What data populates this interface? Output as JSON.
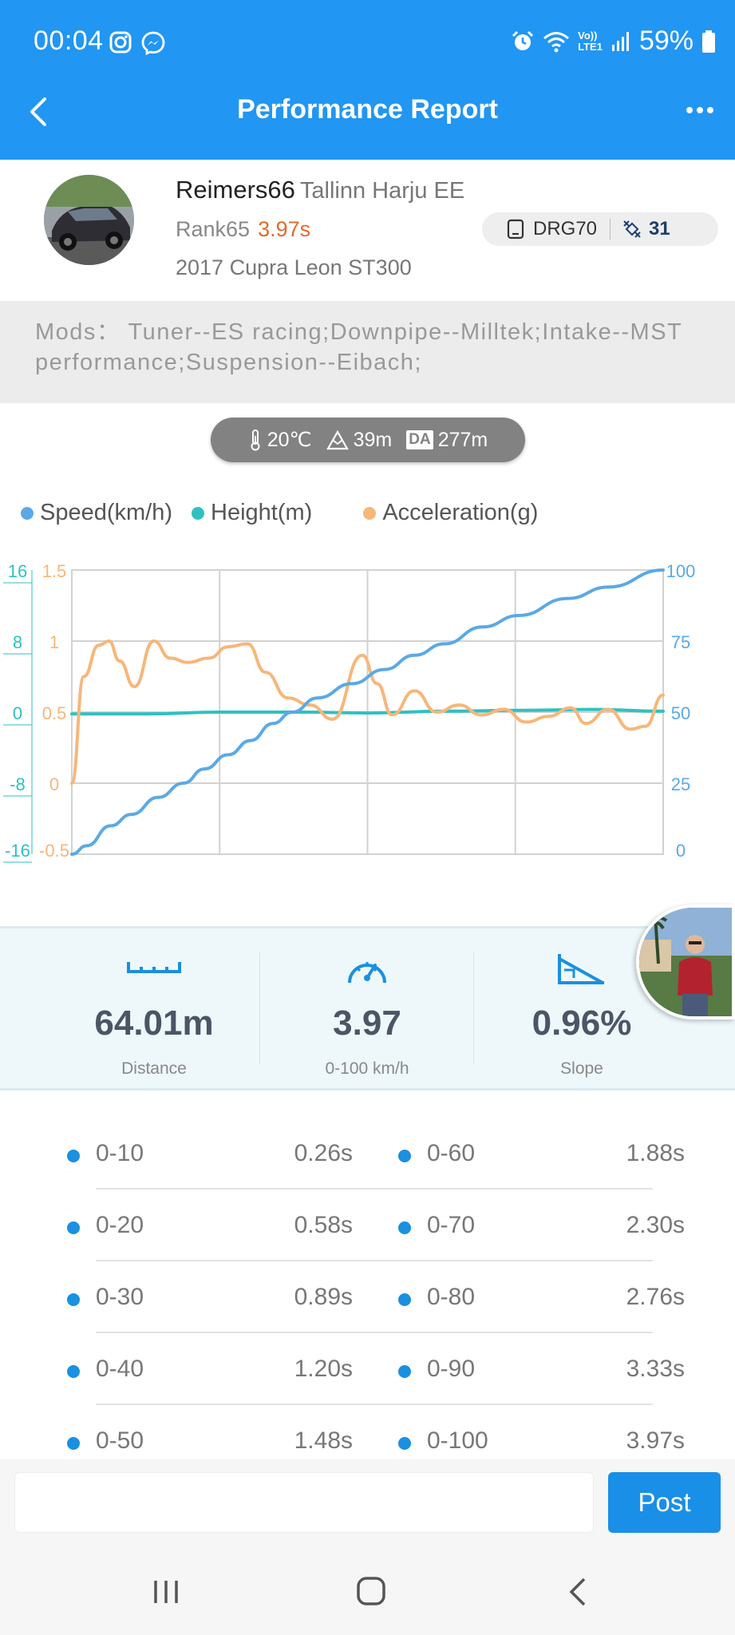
{
  "status_bar": {
    "time": "00:04",
    "left_icons": [
      "instagram-icon",
      "messenger-icon"
    ],
    "right_icons": [
      "alarm-icon",
      "wifi-icon",
      "volte-icon",
      "signal-icon"
    ],
    "network_label_top": "Vo))",
    "network_label_bottom": "LTE1",
    "battery_percent": "59%"
  },
  "header": {
    "title": "Performance Report"
  },
  "profile": {
    "username": "Reimers66",
    "location": "Tallinn Harju EE",
    "rank": "Rank65",
    "rank_time": "3.97s",
    "car": "2017 Cupra Leon ST300",
    "device": "DRG70",
    "satellites": "31"
  },
  "mods": {
    "text": "Mods： Tuner--ES racing;Downpipe--Milltek;Intake--MST performance;Suspension--Eibach;"
  },
  "conditions": {
    "temperature": "20℃",
    "altitude": "39m",
    "da_label": "DA",
    "density_altitude": "277m"
  },
  "legend": [
    {
      "label": "Speed(km/h)",
      "color": "#5aa9e6"
    },
    {
      "label": "Height(m)",
      "color": "#2fc1c0"
    },
    {
      "label": "Acceleration(g)",
      "color": "#f7b67a"
    }
  ],
  "chart_data": {
    "type": "line",
    "x_range": [
      0,
      3.97
    ],
    "grid": true,
    "axes": {
      "height_ticks": [
        "16",
        "8",
        "0",
        "-8",
        "-16"
      ],
      "accel_ticks": [
        "1.5",
        "1",
        "0.5",
        "0",
        "-0.5"
      ],
      "speed_ticks": [
        "100",
        "75",
        "50",
        "25",
        "0"
      ]
    },
    "series": [
      {
        "name": "Speed(km/h)",
        "color": "#5aa9e6",
        "x": [
          0,
          0.1,
          0.26,
          0.4,
          0.58,
          0.75,
          0.89,
          1.05,
          1.2,
          1.35,
          1.48,
          1.65,
          1.88,
          2.1,
          2.3,
          2.5,
          2.76,
          3.0,
          3.33,
          3.6,
          3.97
        ],
        "y": [
          0,
          3,
          10,
          14,
          20,
          25,
          30,
          35,
          40,
          46,
          50,
          55,
          60,
          65,
          70,
          74,
          80,
          84,
          90,
          94,
          100
        ]
      },
      {
        "name": "Height(m)",
        "color": "#2fc1c0",
        "x": [
          0,
          0.5,
          1.0,
          1.5,
          2.0,
          2.5,
          3.0,
          3.5,
          3.97
        ],
        "y": [
          -0.2,
          -0.2,
          0,
          0,
          -0.1,
          0.1,
          0.2,
          0.3,
          0.1
        ]
      },
      {
        "name": "Acceleration(g)",
        "color": "#f7b67a",
        "x": [
          0,
          0.08,
          0.18,
          0.25,
          0.32,
          0.42,
          0.55,
          0.66,
          0.78,
          0.92,
          1.05,
          1.18,
          1.3,
          1.45,
          1.6,
          1.75,
          1.95,
          2.05,
          2.15,
          2.3,
          2.45,
          2.6,
          2.75,
          2.9,
          3.05,
          3.2,
          3.35,
          3.45,
          3.6,
          3.75,
          3.85,
          3.97
        ],
        "y": [
          0,
          0.75,
          0.97,
          1.0,
          0.86,
          0.68,
          1.0,
          0.88,
          0.85,
          0.88,
          0.96,
          0.98,
          0.78,
          0.6,
          0.55,
          0.45,
          0.9,
          0.7,
          0.48,
          0.65,
          0.5,
          0.55,
          0.48,
          0.52,
          0.43,
          0.47,
          0.53,
          0.42,
          0.52,
          0.38,
          0.4,
          0.62
        ]
      }
    ]
  },
  "stats": {
    "distance_value": "64.01m",
    "distance_label": "Distance",
    "time_value": "3.97",
    "time_label": "0-100 km/h",
    "slope_value": "0.96%",
    "slope_label": "Slope"
  },
  "splits": [
    {
      "label": "0-10",
      "value": "0.26s"
    },
    {
      "label": "0-20",
      "value": "0.58s"
    },
    {
      "label": "0-30",
      "value": "0.89s"
    },
    {
      "label": "0-40",
      "value": "1.20s"
    },
    {
      "label": "0-50",
      "value": "1.48s"
    },
    {
      "label": "0-60",
      "value": "1.88s"
    },
    {
      "label": "0-70",
      "value": "2.30s"
    },
    {
      "label": "0-80",
      "value": "2.76s"
    },
    {
      "label": "0-90",
      "value": "3.33s"
    },
    {
      "label": "0-100",
      "value": "3.97s"
    }
  ],
  "comment": {
    "placeholder": "",
    "post_label": "Post"
  },
  "nav_bar": [
    "recents-icon",
    "home-icon",
    "back-icon"
  ]
}
